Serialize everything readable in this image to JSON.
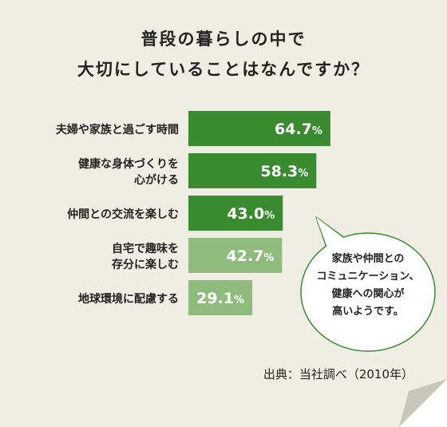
{
  "title": [
    "普段の暮らしの中で",
    "大切にしていることはなんですか？"
  ],
  "chart_data": {
    "type": "bar",
    "orientation": "horizontal",
    "title": "普段の暮らしの中で大切にしていることはなんですか？",
    "categories": [
      "夫婦や家族と過ごす時間",
      "健康な身体づくりを心がける",
      "仲間との交流を楽しむ",
      "自宅で趣味を存分に楽しむ",
      "地球環境に配慮する"
    ],
    "category_lines": [
      [
        "夫婦や家族と過ごす時間"
      ],
      [
        "健康な身体づくりを",
        "心がける"
      ],
      [
        "仲間との交流を楽しむ"
      ],
      [
        "自宅で趣味を",
        "存分に楽しむ"
      ],
      [
        "地球環境に配慮する"
      ]
    ],
    "values": [
      64.7,
      58.3,
      43.0,
      42.7,
      29.1
    ],
    "value_labels": [
      "64.7",
      "58.3",
      "43.0",
      "42.7",
      "29.1"
    ],
    "unit": "%",
    "bar_colors": [
      "#3a8a2f",
      "#3a8a2f",
      "#3a8a2f",
      "#8fbb7d",
      "#8fbb7d"
    ],
    "xlabel": "",
    "ylabel": "",
    "grid": false,
    "legend": "none"
  },
  "annotation": [
    "家族や仲間との",
    "コミュニケーション、",
    "健康への関心が",
    "高いようです。"
  ],
  "source": "出典：当社調べ（2010年）",
  "colors": {
    "background": "#f0eee4",
    "bar_dark": "#3a8a2f",
    "bar_light": "#8fbb7d",
    "bubble_border": "#3a8a2f",
    "page_curl": "#c9c7bb"
  }
}
